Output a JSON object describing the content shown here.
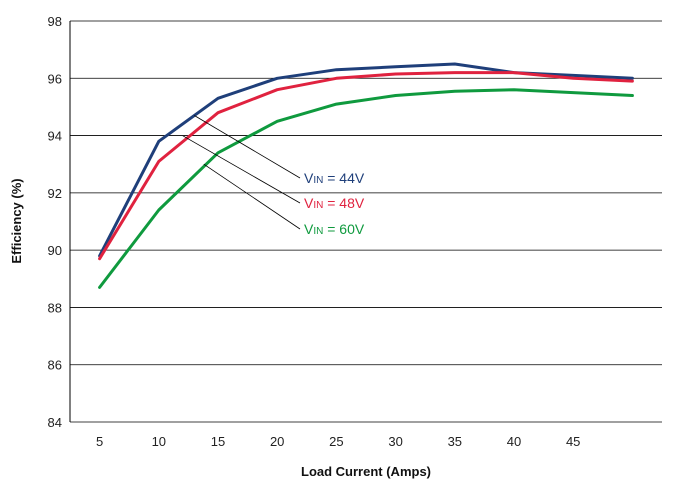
{
  "chart_data": {
    "type": "line",
    "title": "",
    "xlabel": "Load Current (Amps)",
    "ylabel": "Efficiency (%)",
    "xlim": [
      2.5,
      52.5
    ],
    "ylim": [
      84,
      98
    ],
    "x_ticks": [
      "5",
      "10",
      "15",
      "20",
      "25",
      "30",
      "35",
      "40",
      "45"
    ],
    "y_ticks": [
      "84",
      "86",
      "88",
      "90",
      "92",
      "94",
      "96",
      "98"
    ],
    "grid": "horizontal",
    "x": [
      5,
      10,
      15,
      20,
      25,
      30,
      35,
      40,
      45,
      50
    ],
    "series": [
      {
        "vin_prefix": "V",
        "vin_sub": "IN",
        "vin_suffix": " = 44V",
        "color": "#1f3f7a",
        "values": [
          89.8,
          93.8,
          95.3,
          96.0,
          96.3,
          96.4,
          96.5,
          96.2,
          96.1,
          96.0
        ]
      },
      {
        "vin_prefix": "V",
        "vin_sub": "IN",
        "vin_suffix": " = 48V",
        "color": "#e0223f",
        "values": [
          89.7,
          93.1,
          94.8,
          95.6,
          96.0,
          96.15,
          96.2,
          96.2,
          96.0,
          95.9
        ]
      },
      {
        "vin_prefix": "V",
        "vin_sub": "IN",
        "vin_suffix": " = 60V",
        "color": "#0f9a3e",
        "values": [
          88.7,
          91.4,
          93.4,
          94.5,
          95.1,
          95.4,
          95.55,
          95.6,
          95.5,
          95.4
        ]
      }
    ]
  }
}
